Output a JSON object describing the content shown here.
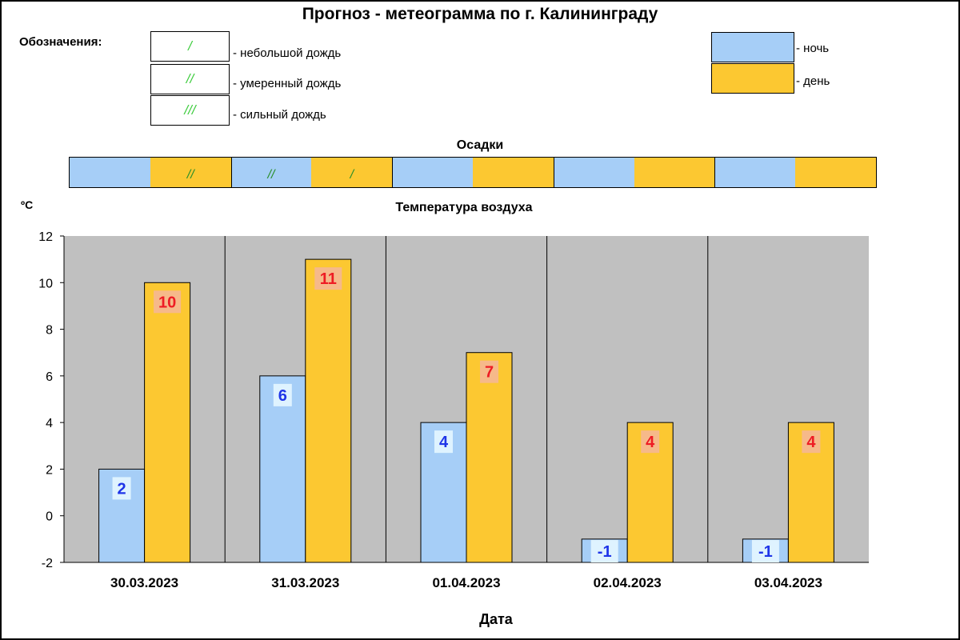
{
  "title": "Прогноз - метеограмма по г. Калининграду",
  "legend": {
    "heading": "Обозначения:",
    "rain": [
      {
        "symbol": "/",
        "label": "- небольшой дождь"
      },
      {
        "symbol": "//",
        "label": "- умеренный дождь"
      },
      {
        "symbol": "///",
        "label": "- сильный дождь"
      }
    ],
    "periods": [
      {
        "label": "- ночь",
        "color": "#a6cef7"
      },
      {
        "label": "- день",
        "color": "#fcc831"
      }
    ]
  },
  "precip": {
    "title": "Осадки",
    "cells": [
      {
        "period": "night",
        "symbol": ""
      },
      {
        "period": "day",
        "symbol": "//"
      },
      {
        "period": "night",
        "symbol": "//"
      },
      {
        "period": "day",
        "symbol": "/"
      },
      {
        "period": "night",
        "symbol": ""
      },
      {
        "period": "day",
        "symbol": ""
      },
      {
        "period": "night",
        "symbol": ""
      },
      {
        "period": "day",
        "symbol": ""
      },
      {
        "period": "night",
        "symbol": ""
      },
      {
        "period": "day",
        "symbol": ""
      }
    ]
  },
  "chart_data": {
    "type": "bar",
    "title": "Температура воздуха",
    "unit_label": "ºC",
    "xlabel": "Дата",
    "categories": [
      "30.03.2023",
      "31.03.2023",
      "01.04.2023",
      "02.04.2023",
      "03.04.2023"
    ],
    "series": [
      {
        "name": "ночь",
        "color": "#a6cef7",
        "label_color": "#1f35e8",
        "label_bg": "#dff3ff",
        "values": [
          2,
          6,
          4,
          -1,
          -1
        ]
      },
      {
        "name": "день",
        "color": "#fcc831",
        "label_color": "#ee1c24",
        "label_bg": "#f6b98a",
        "values": [
          10,
          11,
          7,
          4,
          4
        ]
      }
    ],
    "ylim": [
      -2,
      12
    ],
    "yticks": [
      -2,
      0,
      2,
      4,
      6,
      8,
      10,
      12
    ],
    "grid": false,
    "legend": "none",
    "plot_background": "#c0c0c0"
  }
}
